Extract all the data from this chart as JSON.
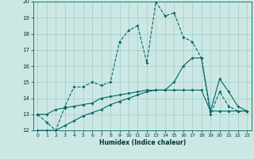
{
  "xlabel": "Humidex (Indice chaleur)",
  "xlim": [
    -0.5,
    23.5
  ],
  "ylim": [
    12,
    20
  ],
  "yticks": [
    12,
    13,
    14,
    15,
    16,
    17,
    18,
    19,
    20
  ],
  "xticks": [
    0,
    1,
    2,
    3,
    4,
    5,
    6,
    7,
    8,
    9,
    10,
    11,
    12,
    13,
    14,
    15,
    16,
    17,
    18,
    19,
    20,
    21,
    22,
    23
  ],
  "bg_color": "#cce8e4",
  "grid_color": "#aacfcb",
  "line_color": "#006666",
  "line1_x": [
    0,
    1,
    2,
    3,
    4,
    5,
    6,
    7,
    8,
    9,
    10,
    11,
    12,
    13,
    14,
    15,
    16,
    17,
    18,
    19,
    20,
    21,
    22,
    23
  ],
  "line1_y": [
    13.0,
    12.5,
    12.0,
    13.5,
    14.7,
    14.7,
    15.0,
    14.8,
    15.0,
    17.5,
    18.2,
    18.5,
    16.2,
    20.0,
    19.1,
    19.3,
    17.8,
    17.5,
    16.5,
    13.0,
    14.4,
    13.5,
    13.2,
    13.2
  ],
  "line2_x": [
    0,
    1,
    2,
    3,
    4,
    5,
    6,
    7,
    8,
    9,
    10,
    11,
    12,
    13,
    14,
    15,
    16,
    17,
    18,
    19,
    20,
    21,
    22,
    23
  ],
  "line2_y": [
    13.0,
    13.0,
    13.3,
    13.4,
    13.5,
    13.6,
    13.7,
    14.0,
    14.1,
    14.2,
    14.3,
    14.4,
    14.5,
    14.5,
    14.5,
    15.0,
    16.0,
    16.5,
    16.5,
    13.2,
    15.2,
    14.4,
    13.5,
    13.2
  ],
  "line3_x": [
    0,
    1,
    2,
    3,
    4,
    5,
    6,
    7,
    8,
    9,
    10,
    11,
    12,
    13,
    14,
    15,
    16,
    17,
    18,
    19,
    20,
    21,
    22,
    23
  ],
  "line3_y": [
    12.0,
    12.0,
    12.0,
    12.3,
    12.6,
    12.9,
    13.1,
    13.3,
    13.6,
    13.8,
    14.0,
    14.2,
    14.4,
    14.5,
    14.5,
    14.5,
    14.5,
    14.5,
    14.5,
    13.2,
    13.2,
    13.2,
    13.2,
    13.2
  ]
}
